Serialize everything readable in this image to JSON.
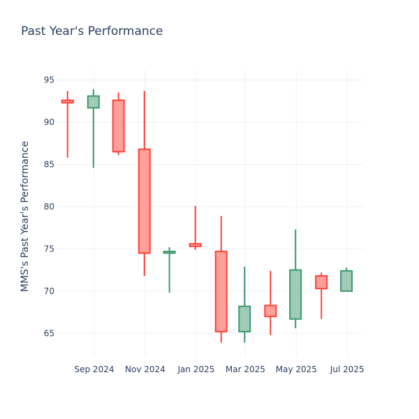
{
  "chart_data": {
    "type": "candlestick",
    "title": "Past Year's Performance",
    "xlabel": "",
    "ylabel": "MMS's Past Year's Performance",
    "ylim": [
      62.3,
      96.2
    ],
    "y_ticks": [
      65,
      70,
      75,
      80,
      85,
      90,
      95
    ],
    "x_ticks": [
      {
        "date": "2024-09-01",
        "label": "Sep 2024"
      },
      {
        "date": "2024-11-01",
        "label": "Nov 2024"
      },
      {
        "date": "2025-01-01",
        "label": "Jan 2025"
      },
      {
        "date": "2025-03-01",
        "label": "Mar 2025"
      },
      {
        "date": "2025-05-01",
        "label": "May 2025"
      },
      {
        "date": "2025-07-01",
        "label": "Jul 2025"
      }
    ],
    "xlim": [
      "2024-07-17",
      "2025-07-20"
    ],
    "grid": true,
    "colors": {
      "up": "#3d9970",
      "up_fill": "#9fcbb7",
      "down": "#ff4136",
      "down_fill": "#ff9f9a"
    },
    "candles": [
      {
        "date": "2024-07-31",
        "open": 92.6,
        "high": 93.7,
        "low": 85.8,
        "close": 92.3
      },
      {
        "date": "2024-08-31",
        "open": 91.7,
        "high": 93.9,
        "low": 84.6,
        "close": 93.1
      },
      {
        "date": "2024-09-30",
        "open": 92.6,
        "high": 93.5,
        "low": 86.1,
        "close": 86.5
      },
      {
        "date": "2024-10-31",
        "open": 86.8,
        "high": 93.7,
        "low": 71.8,
        "close": 74.5
      },
      {
        "date": "2024-11-30",
        "open": 74.5,
        "high": 75.2,
        "low": 69.8,
        "close": 74.7
      },
      {
        "date": "2024-12-31",
        "open": 75.6,
        "high": 80.1,
        "low": 74.9,
        "close": 75.3
      },
      {
        "date": "2025-01-31",
        "open": 74.7,
        "high": 78.9,
        "low": 63.9,
        "close": 65.2
      },
      {
        "date": "2025-02-28",
        "open": 65.2,
        "high": 72.9,
        "low": 63.9,
        "close": 68.2
      },
      {
        "date": "2025-03-31",
        "open": 68.3,
        "high": 72.4,
        "low": 64.8,
        "close": 67.0
      },
      {
        "date": "2025-04-30",
        "open": 66.7,
        "high": 77.3,
        "low": 65.6,
        "close": 72.5
      },
      {
        "date": "2025-05-31",
        "open": 71.8,
        "high": 72.2,
        "low": 66.7,
        "close": 70.3
      },
      {
        "date": "2025-06-30",
        "open": 70.0,
        "high": 72.8,
        "low": 70.0,
        "close": 72.4
      }
    ]
  }
}
